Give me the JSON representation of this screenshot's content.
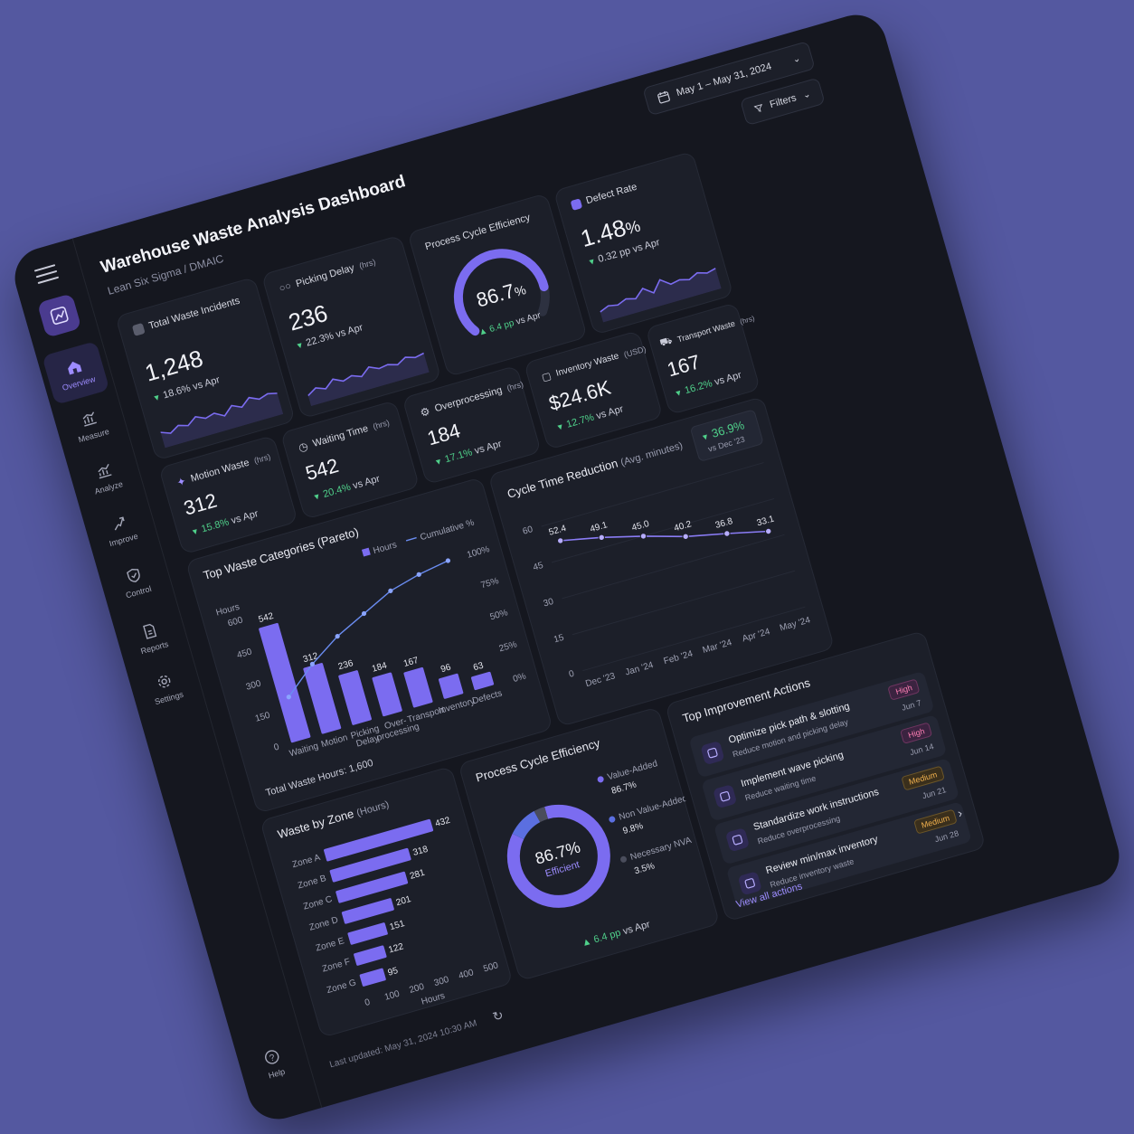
{
  "header": {
    "title": "Warehouse Waste Analysis Dashboard",
    "subtitle": "Lean Six Sigma / DMAIC",
    "date_range": "May 1 – May 31, 2024",
    "filters_label": "Filters"
  },
  "sidebar": {
    "items": [
      {
        "label": "Overview",
        "icon": "home-icon",
        "active": true
      },
      {
        "label": "Measure",
        "icon": "measure-icon"
      },
      {
        "label": "Analyze",
        "icon": "analyze-icon"
      },
      {
        "label": "Improve",
        "icon": "improve-icon"
      },
      {
        "label": "Control",
        "icon": "control-icon"
      },
      {
        "label": "Reports",
        "icon": "reports-icon"
      },
      {
        "label": "Settings",
        "icon": "gear-icon"
      }
    ],
    "help_label": "Help"
  },
  "kpis": {
    "total_waste": {
      "title": "Total Waste Incidents",
      "value": "1,248",
      "delta": "18.6%",
      "vs": "vs Apr",
      "spark": [
        0.45,
        0.35,
        0.5,
        0.42,
        0.6,
        0.48,
        0.55,
        0.4,
        0.62,
        0.5,
        0.7,
        0.58,
        0.66,
        0.6
      ]
    },
    "picking_delay": {
      "title": "Picking Delay",
      "unit": "(hrs)",
      "value": "236",
      "delta": "22.3%",
      "vs": "vs Apr",
      "spark": [
        0.3,
        0.45,
        0.35,
        0.55,
        0.42,
        0.5,
        0.4,
        0.6,
        0.48,
        0.52,
        0.44,
        0.58,
        0.5,
        0.55
      ]
    },
    "pce": {
      "title": "Process Cycle Efficiency",
      "value": "86.7",
      "pct": "%",
      "delta": "6.4 pp",
      "vs": "vs Apr",
      "gauge": 0.867
    },
    "defect_rate": {
      "title": "Defect Rate",
      "value": "1.48",
      "pct": "%",
      "delta": "0.32 pp",
      "vs": "vs Apr",
      "spark": [
        0.3,
        0.4,
        0.35,
        0.45,
        0.38,
        0.6,
        0.4,
        0.7,
        0.5,
        0.55,
        0.48,
        0.6,
        0.52,
        0.58
      ]
    },
    "motion": {
      "title": "Motion Waste",
      "unit": "(hrs)",
      "value": "312",
      "delta": "15.8%",
      "vs": "vs Apr"
    },
    "waiting": {
      "title": "Waiting Time",
      "unit": "(hrs)",
      "value": "542",
      "delta": "20.4%",
      "vs": "vs Apr"
    },
    "overprocessing": {
      "title": "Overprocessing",
      "unit": "(hrs)",
      "value": "184",
      "delta": "17.1%",
      "vs": "vs Apr"
    },
    "inventory": {
      "title": "Inventory Waste",
      "unit": "(USD)",
      "value": "$24.6K",
      "delta": "12.7%",
      "vs": "vs Apr"
    },
    "transport": {
      "title": "Transport Waste",
      "unit": "(hrs)",
      "value": "167",
      "delta": "16.2%",
      "vs": "vs Apr"
    }
  },
  "pareto": {
    "title": "Top Waste Categories (Pareto)",
    "legend_hours": "Hours",
    "legend_cum": "Cumulative %",
    "y_label": "Hours",
    "total": "Total Waste Hours: 1,600",
    "chart_data": {
      "type": "bar",
      "categories": [
        "Waiting",
        "Motion",
        "Picking Delay",
        "Over-processing",
        "Transport",
        "Inventory",
        "Defects"
      ],
      "values": [
        542,
        312,
        236,
        184,
        167,
        96,
        63
      ],
      "cumulative": [
        34,
        53,
        68,
        79,
        90,
        96,
        100
      ],
      "ylim": [
        0,
        600
      ],
      "y_ticks": [
        0,
        150,
        300,
        450,
        600
      ],
      "y2_ticks": [
        "0%",
        "25%",
        "50%",
        "75%",
        "100%"
      ]
    }
  },
  "cycle": {
    "title": "Cycle Time Reduction",
    "unit": "(Avg. minutes)",
    "badge_value": "36.9%",
    "badge_vs": "vs Dec '23",
    "chart_data": {
      "type": "line",
      "x": [
        "Dec '23",
        "Jan '24",
        "Feb '24",
        "Mar '24",
        "Apr '24",
        "May '24"
      ],
      "values": [
        52.4,
        49.1,
        45.0,
        40.2,
        36.8,
        33.1
      ],
      "ylim": [
        0,
        60
      ],
      "y_ticks": [
        0,
        15,
        30,
        45,
        60
      ]
    }
  },
  "zone": {
    "title": "Waste by Zone",
    "unit": "(Hours)",
    "x_label": "Hours",
    "chart_data": {
      "type": "bar",
      "orientation": "horizontal",
      "categories": [
        "Zone A",
        "Zone B",
        "Zone C",
        "Zone D",
        "Zone E",
        "Zone F",
        "Zone G"
      ],
      "values": [
        432,
        318,
        281,
        201,
        151,
        122,
        95
      ],
      "xlim": [
        0,
        500
      ],
      "x_ticks": [
        0,
        100,
        200,
        300,
        400,
        500
      ]
    }
  },
  "pce_donut": {
    "title": "Process Cycle Efficiency",
    "center": "86.7%",
    "center_sub": "Efficient",
    "delta": "6.4 pp",
    "vs": "vs Apr",
    "chart_data": {
      "type": "pie",
      "labels": [
        "Value-Added",
        "Non Value-Added",
        "Necessary NVA"
      ],
      "values": [
        86.7,
        9.8,
        3.5
      ],
      "value_labels": [
        "86.7%",
        "9.8%",
        "3.5%"
      ],
      "colors": [
        "#7b6cf0",
        "#5b6fe0",
        "#4a4d5c"
      ]
    }
  },
  "actions": {
    "title": "Top Improvement Actions",
    "view_all": "View all actions",
    "items": [
      {
        "title": "Optimize pick path & slotting",
        "sub": "Reduce motion and picking delay",
        "priority": "High",
        "due": "Jun 7"
      },
      {
        "title": "Implement wave picking",
        "sub": "Reduce waiting time",
        "priority": "High",
        "due": "Jun 14"
      },
      {
        "title": "Standardize work instructions",
        "sub": "Reduce overprocessing",
        "priority": "Medium",
        "due": "Jun 21"
      },
      {
        "title": "Review min/max inventory",
        "sub": "Reduce inventory waste",
        "priority": "Medium",
        "due": "Jun 28"
      }
    ]
  },
  "footer": {
    "last_updated": "Last updated: May 31, 2024 10:30 AM"
  },
  "colors": {
    "accent": "#7b6cf0",
    "green": "#4fd08a",
    "background": "#5458a0"
  }
}
